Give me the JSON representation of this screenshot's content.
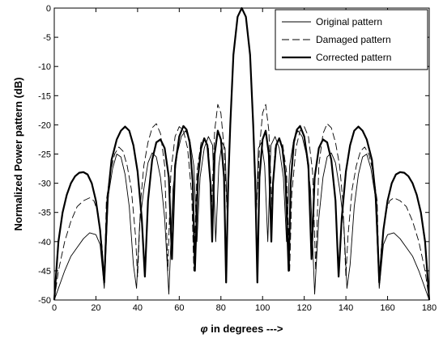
{
  "chart_data": {
    "type": "line",
    "title": "",
    "xlabel_symbol": "φ",
    "xlabel_text": " in degrees --->",
    "ylabel": "Normalized Power pattern (dB)",
    "xlim": [
      0,
      180
    ],
    "ylim": [
      -50,
      0
    ],
    "xticks": [
      0,
      20,
      40,
      60,
      80,
      100,
      120,
      140,
      160,
      180
    ],
    "yticks": [
      0,
      -5,
      -10,
      -15,
      -20,
      -25,
      -30,
      -35,
      -40,
      -45,
      -50
    ],
    "legend_position": "top-right",
    "grid": false,
    "series": [
      {
        "name": "Original pattern",
        "style": "solid-thin",
        "points": [
          [
            0,
            -50
          ],
          [
            2,
            -48
          ],
          [
            5,
            -45
          ],
          [
            8,
            -42.5
          ],
          [
            11,
            -41
          ],
          [
            14,
            -39.5
          ],
          [
            17,
            -38.5
          ],
          [
            20,
            -38.8
          ],
          [
            22,
            -40.5
          ],
          [
            24,
            -48
          ],
          [
            26,
            -32
          ],
          [
            28,
            -27.5
          ],
          [
            30,
            -25
          ],
          [
            32,
            -25.5
          ],
          [
            34,
            -28.5
          ],
          [
            36,
            -34
          ],
          [
            38,
            -44
          ],
          [
            39.5,
            -48
          ],
          [
            41,
            -37
          ],
          [
            43,
            -31
          ],
          [
            45,
            -26.5
          ],
          [
            47,
            -24.8
          ],
          [
            49,
            -25.5
          ],
          [
            51,
            -29
          ],
          [
            53,
            -36
          ],
          [
            55,
            -49
          ],
          [
            57,
            -31
          ],
          [
            59,
            -25
          ],
          [
            61,
            -22
          ],
          [
            63,
            -21
          ],
          [
            65,
            -22.5
          ],
          [
            67,
            -27
          ],
          [
            68.5,
            -40
          ],
          [
            70,
            -29
          ],
          [
            72,
            -24
          ],
          [
            74,
            -22
          ],
          [
            76,
            -23.5
          ],
          [
            77.5,
            -40
          ],
          [
            79,
            -27
          ],
          [
            80.5,
            -23
          ],
          [
            82,
            -24
          ],
          [
            83.2,
            -37
          ],
          [
            84.5,
            -20
          ],
          [
            86,
            -8
          ],
          [
            88,
            -1.5
          ],
          [
            90,
            0
          ],
          [
            92,
            -1.5
          ],
          [
            94,
            -8
          ],
          [
            95.5,
            -20
          ],
          [
            96.8,
            -37
          ],
          [
            98,
            -24
          ],
          [
            99.5,
            -23
          ],
          [
            101,
            -27
          ],
          [
            102.5,
            -40
          ],
          [
            104,
            -23.5
          ],
          [
            106,
            -22
          ],
          [
            108,
            -24
          ],
          [
            110,
            -29
          ],
          [
            111.5,
            -40
          ],
          [
            113,
            -27
          ],
          [
            115,
            -22.5
          ],
          [
            117,
            -21
          ],
          [
            119,
            -22
          ],
          [
            121,
            -25
          ],
          [
            123,
            -31
          ],
          [
            125,
            -49
          ],
          [
            127,
            -36
          ],
          [
            129,
            -29
          ],
          [
            131,
            -25.5
          ],
          [
            133,
            -24.8
          ],
          [
            135,
            -26.5
          ],
          [
            137,
            -31
          ],
          [
            139,
            -37
          ],
          [
            140.5,
            -48
          ],
          [
            142,
            -44
          ],
          [
            144,
            -34
          ],
          [
            146,
            -28.5
          ],
          [
            148,
            -25.5
          ],
          [
            150,
            -25
          ],
          [
            152,
            -27.5
          ],
          [
            154,
            -32
          ],
          [
            156,
            -48
          ],
          [
            158,
            -40.5
          ],
          [
            160,
            -38.8
          ],
          [
            163,
            -38.5
          ],
          [
            166,
            -39.5
          ],
          [
            169,
            -41
          ],
          [
            172,
            -42.5
          ],
          [
            175,
            -45
          ],
          [
            178,
            -48
          ],
          [
            180,
            -50
          ]
        ]
      },
      {
        "name": "Damaged pattern",
        "style": "dashed",
        "points": [
          [
            0,
            -50
          ],
          [
            2,
            -45
          ],
          [
            5,
            -40
          ],
          [
            8,
            -36.5
          ],
          [
            11,
            -34
          ],
          [
            14,
            -33
          ],
          [
            17,
            -32.5
          ],
          [
            19,
            -33
          ],
          [
            21,
            -35
          ],
          [
            23,
            -41
          ],
          [
            24,
            -47
          ],
          [
            25,
            -33
          ],
          [
            27,
            -28
          ],
          [
            29,
            -25
          ],
          [
            31,
            -23.8
          ],
          [
            33,
            -24.5
          ],
          [
            35,
            -27
          ],
          [
            37,
            -31
          ],
          [
            39,
            -39
          ],
          [
            40,
            -46
          ],
          [
            41.5,
            -33
          ],
          [
            43,
            -27
          ],
          [
            45,
            -23
          ],
          [
            47,
            -20.5
          ],
          [
            49,
            -19.8
          ],
          [
            51,
            -21.5
          ],
          [
            53,
            -27
          ],
          [
            54.5,
            -45
          ],
          [
            56,
            -28
          ],
          [
            58,
            -22
          ],
          [
            60,
            -20.3
          ],
          [
            62,
            -21
          ],
          [
            64,
            -24
          ],
          [
            66,
            -32
          ],
          [
            67,
            -45
          ],
          [
            68.5,
            -28
          ],
          [
            70.5,
            -23
          ],
          [
            72.5,
            -22.5
          ],
          [
            74,
            -24
          ],
          [
            75.5,
            -34
          ],
          [
            77,
            -21
          ],
          [
            78.5,
            -16.5
          ],
          [
            80,
            -18
          ],
          [
            81.5,
            -24
          ],
          [
            83,
            -35
          ],
          [
            84.5,
            -20
          ],
          [
            86,
            -8
          ],
          [
            88,
            -1.5
          ],
          [
            90,
            0
          ],
          [
            92,
            -1.5
          ],
          [
            94,
            -8
          ],
          [
            95.5,
            -20
          ],
          [
            97,
            -35
          ],
          [
            98.5,
            -24
          ],
          [
            100,
            -18
          ],
          [
            101.5,
            -16.5
          ],
          [
            103,
            -21
          ],
          [
            104.5,
            -34
          ],
          [
            106,
            -24
          ],
          [
            107.5,
            -22.5
          ],
          [
            109.5,
            -23
          ],
          [
            111.5,
            -28
          ],
          [
            113,
            -45
          ],
          [
            114,
            -32
          ],
          [
            116,
            -24
          ],
          [
            118,
            -21
          ],
          [
            120,
            -20.3
          ],
          [
            122,
            -22
          ],
          [
            124,
            -28
          ],
          [
            125.5,
            -45
          ],
          [
            127,
            -27
          ],
          [
            129,
            -21.5
          ],
          [
            131,
            -19.8
          ],
          [
            133,
            -20.5
          ],
          [
            135,
            -23
          ],
          [
            137,
            -27
          ],
          [
            138.5,
            -33
          ],
          [
            140,
            -46
          ],
          [
            141,
            -39
          ],
          [
            143,
            -31
          ],
          [
            145,
            -27
          ],
          [
            147,
            -24.5
          ],
          [
            149,
            -23.8
          ],
          [
            151,
            -25
          ],
          [
            153,
            -28
          ],
          [
            155,
            -33
          ],
          [
            156,
            -47
          ],
          [
            157,
            -41
          ],
          [
            159,
            -35
          ],
          [
            161,
            -33
          ],
          [
            163,
            -32.5
          ],
          [
            166,
            -33
          ],
          [
            169,
            -34
          ],
          [
            172,
            -36.5
          ],
          [
            175,
            -40
          ],
          [
            178,
            -45
          ],
          [
            180,
            -50
          ]
        ]
      },
      {
        "name": "Corrected pattern",
        "style": "solid-thick",
        "points": [
          [
            0,
            -50
          ],
          [
            2,
            -40
          ],
          [
            4,
            -35
          ],
          [
            6,
            -32
          ],
          [
            8,
            -30
          ],
          [
            10,
            -28.8
          ],
          [
            12,
            -28.2
          ],
          [
            14,
            -28.1
          ],
          [
            16,
            -28.5
          ],
          [
            18,
            -30
          ],
          [
            20,
            -33
          ],
          [
            22,
            -38
          ],
          [
            24,
            -47
          ],
          [
            25.5,
            -33
          ],
          [
            27.5,
            -26
          ],
          [
            30,
            -22.5
          ],
          [
            32,
            -21
          ],
          [
            34,
            -20.3
          ],
          [
            36,
            -21
          ],
          [
            38,
            -23.5
          ],
          [
            40,
            -28
          ],
          [
            42,
            -36
          ],
          [
            43.5,
            -46
          ],
          [
            45,
            -33
          ],
          [
            47,
            -26
          ],
          [
            49,
            -23
          ],
          [
            51,
            -22.5
          ],
          [
            53,
            -24
          ],
          [
            55,
            -29
          ],
          [
            56.5,
            -43
          ],
          [
            58,
            -27
          ],
          [
            60,
            -22
          ],
          [
            62,
            -20.2
          ],
          [
            63.5,
            -20.8
          ],
          [
            65,
            -23
          ],
          [
            66.5,
            -30
          ],
          [
            67.5,
            -45
          ],
          [
            69,
            -29
          ],
          [
            70.5,
            -24
          ],
          [
            72,
            -22.3
          ],
          [
            73.5,
            -23.5
          ],
          [
            75,
            -30
          ],
          [
            75.8,
            -40
          ],
          [
            77,
            -25
          ],
          [
            78.5,
            -21
          ],
          [
            80,
            -22.5
          ],
          [
            81.5,
            -29
          ],
          [
            82.5,
            -47
          ],
          [
            83.5,
            -30
          ],
          [
            84.5,
            -20
          ],
          [
            86,
            -8
          ],
          [
            88,
            -1.5
          ],
          [
            90,
            0
          ],
          [
            92,
            -1.5
          ],
          [
            94,
            -8
          ],
          [
            95.5,
            -20
          ],
          [
            96.5,
            -30
          ],
          [
            97.5,
            -47
          ],
          [
            98.5,
            -29
          ],
          [
            100,
            -22.5
          ],
          [
            101.5,
            -21
          ],
          [
            103,
            -25
          ],
          [
            104.2,
            -40
          ],
          [
            105,
            -30
          ],
          [
            106.5,
            -23.5
          ],
          [
            108,
            -22.3
          ],
          [
            109.5,
            -24
          ],
          [
            111,
            -29
          ],
          [
            112.5,
            -45
          ],
          [
            113.5,
            -30
          ],
          [
            115,
            -23
          ],
          [
            116.5,
            -20.8
          ],
          [
            118,
            -20.2
          ],
          [
            120,
            -22
          ],
          [
            122,
            -27
          ],
          [
            123.5,
            -43
          ],
          [
            125,
            -29
          ],
          [
            127,
            -24
          ],
          [
            129,
            -22.5
          ],
          [
            131,
            -23
          ],
          [
            133,
            -26
          ],
          [
            135,
            -33
          ],
          [
            136.5,
            -46
          ],
          [
            138,
            -36
          ],
          [
            140,
            -28
          ],
          [
            142,
            -23.5
          ],
          [
            144,
            -21
          ],
          [
            146,
            -20.3
          ],
          [
            148,
            -21
          ],
          [
            150,
            -22.5
          ],
          [
            152.5,
            -26
          ],
          [
            154.5,
            -33
          ],
          [
            156,
            -47
          ],
          [
            158,
            -38
          ],
          [
            160,
            -33
          ],
          [
            162,
            -30
          ],
          [
            164,
            -28.5
          ],
          [
            166,
            -28.1
          ],
          [
            168,
            -28.2
          ],
          [
            170,
            -28.8
          ],
          [
            172,
            -30
          ],
          [
            174,
            -32
          ],
          [
            176,
            -35
          ],
          [
            178,
            -40
          ],
          [
            180,
            -50
          ]
        ]
      }
    ]
  }
}
